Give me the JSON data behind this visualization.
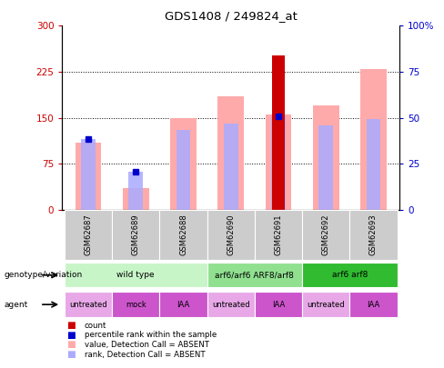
{
  "title": "GDS1408 / 249824_at",
  "samples": [
    "GSM62687",
    "GSM62689",
    "GSM62688",
    "GSM62690",
    "GSM62691",
    "GSM62692",
    "GSM62693"
  ],
  "pink_bar_heights": [
    110,
    35,
    150,
    185,
    155,
    170,
    230
  ],
  "lightblue_bar_heights": [
    115,
    62,
    130,
    140,
    152,
    138,
    148
  ],
  "red_bar_heights": [
    0,
    0,
    0,
    0,
    252,
    0,
    0
  ],
  "blue_square_heights": [
    115,
    62,
    0,
    0,
    152,
    0,
    0
  ],
  "ylim_left": [
    0,
    300
  ],
  "ylim_right": [
    0,
    100
  ],
  "yticks_left": [
    0,
    75,
    150,
    225,
    300
  ],
  "yticks_right": [
    0,
    25,
    50,
    75,
    100
  ],
  "ytick_labels_left": [
    "0",
    "75",
    "150",
    "225",
    "300"
  ],
  "ytick_labels_right": [
    "0",
    "25",
    "50",
    "75",
    "100%"
  ],
  "genotype_groups": [
    {
      "label": "wild type",
      "start": 0,
      "end": 3,
      "color": "#c8f5c8"
    },
    {
      "label": "arf6/arf6 ARF8/arf8",
      "start": 3,
      "end": 5,
      "color": "#90e090"
    },
    {
      "label": "arf6 arf8",
      "start": 5,
      "end": 7,
      "color": "#30bb30"
    }
  ],
  "agent_groups": [
    {
      "label": "untreated",
      "start": 0,
      "end": 1,
      "color": "#e8a8e8"
    },
    {
      "label": "mock",
      "start": 1,
      "end": 2,
      "color": "#cc55cc"
    },
    {
      "label": "IAA",
      "start": 2,
      "end": 3,
      "color": "#cc55cc"
    },
    {
      "label": "untreated",
      "start": 3,
      "end": 4,
      "color": "#e8a8e8"
    },
    {
      "label": "IAA",
      "start": 4,
      "end": 5,
      "color": "#cc55cc"
    },
    {
      "label": "untreated",
      "start": 5,
      "end": 6,
      "color": "#e8a8e8"
    },
    {
      "label": "IAA",
      "start": 6,
      "end": 7,
      "color": "#cc55cc"
    }
  ],
  "legend_items": [
    {
      "label": "count",
      "color": "#cc0000"
    },
    {
      "label": "percentile rank within the sample",
      "color": "#0000cc"
    },
    {
      "label": "value, Detection Call = ABSENT",
      "color": "#ffaaaa"
    },
    {
      "label": "rank, Detection Call = ABSENT",
      "color": "#aaaaff"
    }
  ],
  "bar_color_pink": "#ffaaaa",
  "bar_color_lightblue": "#aaaaff",
  "bar_color_red": "#cc0000",
  "bar_color_blue": "#0000cc",
  "left_axis_color": "#cc0000",
  "right_axis_color": "#0000cc",
  "sample_bg_color": "#cccccc"
}
